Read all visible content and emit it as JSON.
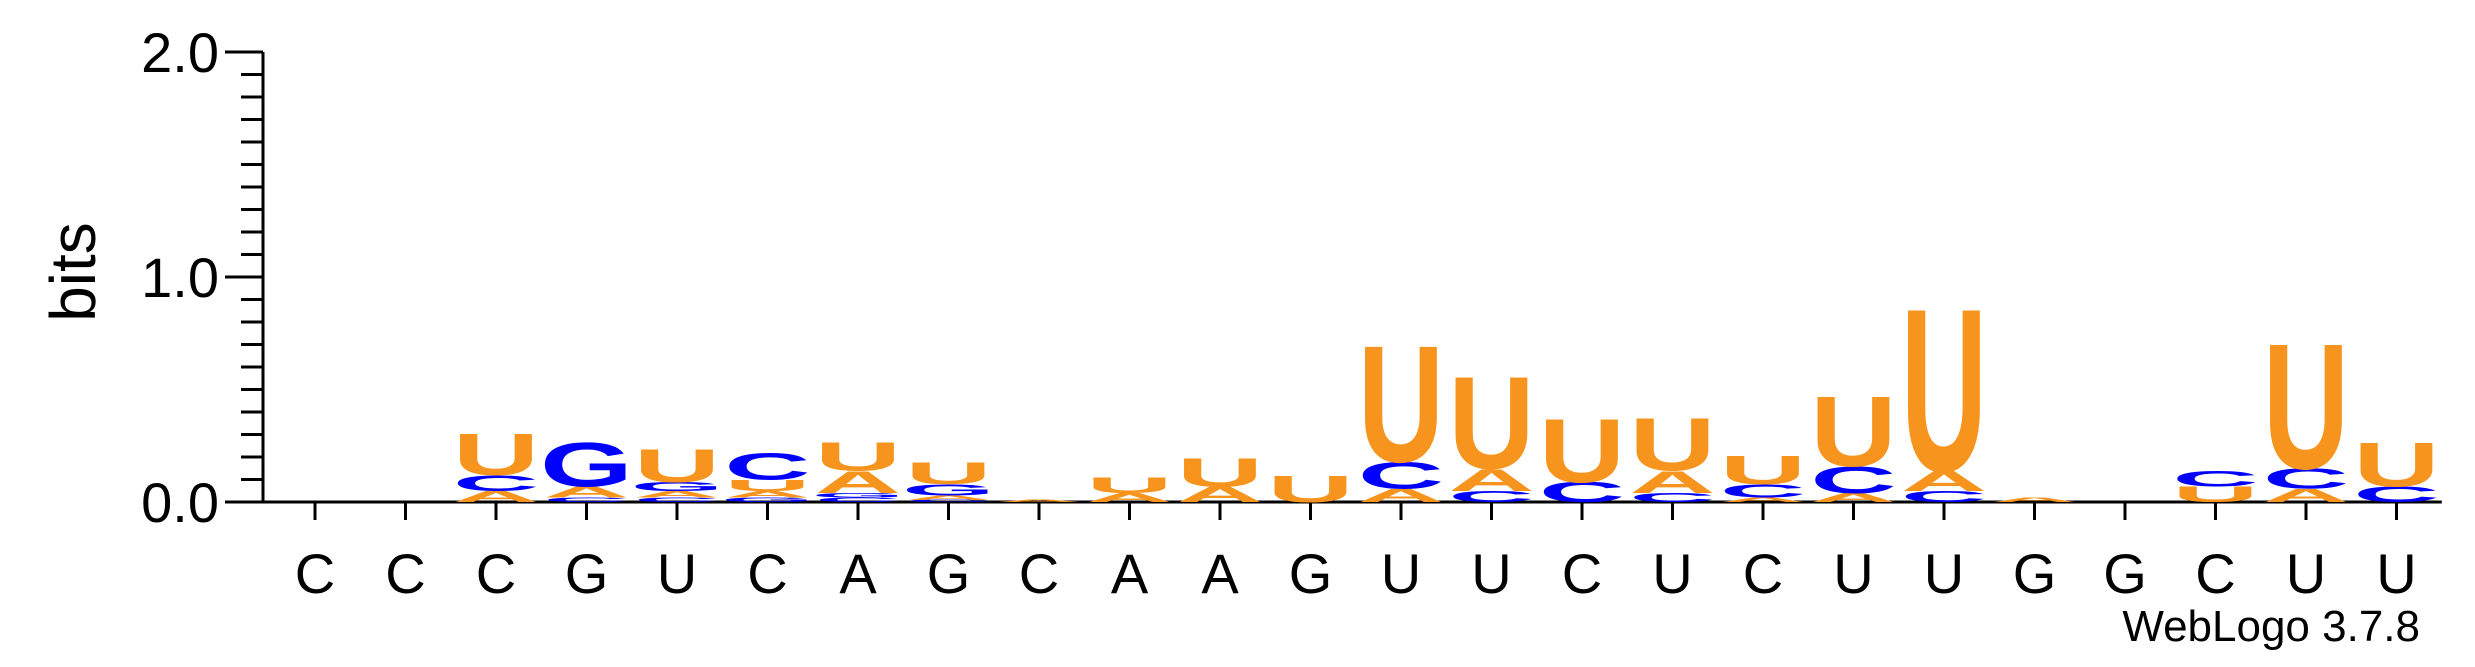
{
  "chart_data": {
    "type": "sequence-logo",
    "ylabel": "bits",
    "ylim": [
      0,
      2.0
    ],
    "yticks": [
      "0.0",
      "1.0",
      "2.0"
    ],
    "credit": "WebLogo 3.7.8",
    "colors": {
      "A": "#f7941d",
      "U": "#f7941d",
      "C": "#0000ff",
      "G": "#0000ff"
    },
    "positions": [
      {
        "label": "C",
        "stack": []
      },
      {
        "label": "C",
        "stack": []
      },
      {
        "label": "C",
        "stack": [
          {
            "letter": "A",
            "bits": 0.05
          },
          {
            "letter": "C",
            "bits": 0.07
          },
          {
            "letter": "U",
            "bits": 0.19
          }
        ]
      },
      {
        "label": "G",
        "stack": [
          {
            "letter": "C",
            "bits": 0.02
          },
          {
            "letter": "A",
            "bits": 0.05
          },
          {
            "letter": "G",
            "bits": 0.2
          }
        ]
      },
      {
        "label": "U",
        "stack": [
          {
            "letter": "C",
            "bits": 0.02
          },
          {
            "letter": "A",
            "bits": 0.03
          },
          {
            "letter": "G",
            "bits": 0.04
          },
          {
            "letter": "U",
            "bits": 0.15
          }
        ]
      },
      {
        "label": "C",
        "stack": [
          {
            "letter": "G",
            "bits": 0.02
          },
          {
            "letter": "A",
            "bits": 0.03
          },
          {
            "letter": "U",
            "bits": 0.05
          },
          {
            "letter": "C",
            "bits": 0.12
          }
        ]
      },
      {
        "label": "A",
        "stack": [
          {
            "letter": "C",
            "bits": 0.02
          },
          {
            "letter": "G",
            "bits": 0.02
          },
          {
            "letter": "A",
            "bits": 0.1
          },
          {
            "letter": "U",
            "bits": 0.13
          }
        ]
      },
      {
        "label": "G",
        "stack": [
          {
            "letter": "C",
            "bits": 0.01
          },
          {
            "letter": "A",
            "bits": 0.02
          },
          {
            "letter": "G",
            "bits": 0.05
          },
          {
            "letter": "U",
            "bits": 0.1
          }
        ]
      },
      {
        "label": "C",
        "stack": [
          {
            "letter": "A",
            "bits": 0.01
          }
        ]
      },
      {
        "label": "A",
        "stack": [
          {
            "letter": "A",
            "bits": 0.04
          },
          {
            "letter": "U",
            "bits": 0.07
          }
        ]
      },
      {
        "label": "A",
        "stack": [
          {
            "letter": "A",
            "bits": 0.07
          },
          {
            "letter": "U",
            "bits": 0.13
          }
        ]
      },
      {
        "label": "G",
        "stack": [
          {
            "letter": "U",
            "bits": 0.12
          }
        ]
      },
      {
        "label": "U",
        "stack": [
          {
            "letter": "A",
            "bits": 0.06
          },
          {
            "letter": "C",
            "bits": 0.12
          },
          {
            "letter": "U",
            "bits": 0.53
          }
        ]
      },
      {
        "label": "U",
        "stack": [
          {
            "letter": "C",
            "bits": 0.05
          },
          {
            "letter": "A",
            "bits": 0.1
          },
          {
            "letter": "U",
            "bits": 0.42
          }
        ]
      },
      {
        "label": "C",
        "stack": [
          {
            "letter": "C",
            "bits": 0.09
          },
          {
            "letter": "U",
            "bits": 0.29
          }
        ]
      },
      {
        "label": "U",
        "stack": [
          {
            "letter": "C",
            "bits": 0.04
          },
          {
            "letter": "A",
            "bits": 0.1
          },
          {
            "letter": "U",
            "bits": 0.24
          }
        ]
      },
      {
        "label": "C",
        "stack": [
          {
            "letter": "A",
            "bits": 0.02
          },
          {
            "letter": "C",
            "bits": 0.06
          },
          {
            "letter": "U",
            "bits": 0.13
          }
        ]
      },
      {
        "label": "U",
        "stack": [
          {
            "letter": "A",
            "bits": 0.04
          },
          {
            "letter": "C",
            "bits": 0.12
          },
          {
            "letter": "U",
            "bits": 0.32
          }
        ]
      },
      {
        "label": "U",
        "stack": [
          {
            "letter": "C",
            "bits": 0.05
          },
          {
            "letter": "A",
            "bits": 0.09
          },
          {
            "letter": "U",
            "bits": 0.74
          }
        ]
      },
      {
        "label": "G",
        "stack": [
          {
            "letter": "A",
            "bits": 0.02
          }
        ]
      },
      {
        "label": "G",
        "stack": []
      },
      {
        "label": "C",
        "stack": [
          {
            "letter": "U",
            "bits": 0.07
          },
          {
            "letter": "C",
            "bits": 0.07
          }
        ]
      },
      {
        "label": "U",
        "stack": [
          {
            "letter": "A",
            "bits": 0.06
          },
          {
            "letter": "C",
            "bits": 0.09
          },
          {
            "letter": "U",
            "bits": 0.57
          }
        ]
      },
      {
        "label": "U",
        "stack": [
          {
            "letter": "C",
            "bits": 0.07
          },
          {
            "letter": "U",
            "bits": 0.2
          }
        ]
      }
    ]
  }
}
